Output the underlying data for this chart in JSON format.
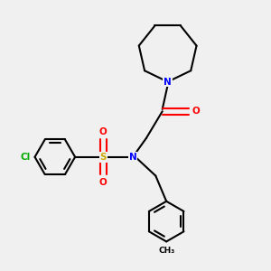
{
  "background_color": "#f0f0f0",
  "bond_color": "#000000",
  "n_color": "#0000ff",
  "o_color": "#ff0000",
  "s_color": "#ccaa00",
  "cl_color": "#00aa00",
  "line_width": 1.5,
  "fig_size": [
    3.0,
    3.0
  ],
  "dpi": 100,
  "xlim": [
    0,
    10
  ],
  "ylim": [
    0,
    10
  ]
}
